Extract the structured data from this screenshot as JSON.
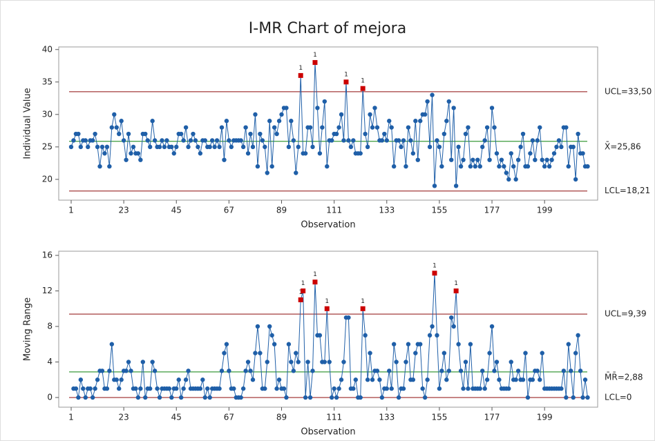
{
  "chart_data": [
    {
      "type": "line",
      "title": "I-MR Chart of mejora",
      "x_label": "Observation",
      "y_label": "Individual Value",
      "x": [
        1,
        2,
        3,
        4,
        5,
        6,
        7,
        8,
        9,
        10,
        11,
        12,
        13,
        14,
        15,
        16,
        17,
        18,
        19,
        20,
        21,
        22,
        23,
        24,
        25,
        26,
        27,
        28,
        29,
        30,
        31,
        32,
        33,
        34,
        35,
        36,
        37,
        38,
        39,
        40,
        41,
        42,
        43,
        44,
        45,
        46,
        47,
        48,
        49,
        50,
        51,
        52,
        53,
        54,
        55,
        56,
        57,
        58,
        59,
        60,
        61,
        62,
        63,
        64,
        65,
        66,
        67,
        68,
        69,
        70,
        71,
        72,
        73,
        74,
        75,
        76,
        77,
        78,
        79,
        80,
        81,
        82,
        83,
        84,
        85,
        86,
        87,
        88,
        89,
        90,
        91,
        92,
        93,
        94,
        95,
        96,
        97,
        98,
        99,
        100,
        101,
        102,
        103,
        104,
        105,
        106,
        107,
        108,
        109,
        110,
        111,
        112,
        113,
        114,
        115,
        116,
        117,
        118,
        119,
        120,
        121,
        122,
        123,
        124,
        125,
        126,
        127,
        128,
        129,
        130,
        131,
        132,
        133,
        134,
        135,
        136,
        137,
        138,
        139,
        140,
        141,
        142,
        143,
        144,
        145,
        146,
        147,
        148,
        149,
        150,
        151,
        152,
        153,
        154,
        155,
        156,
        157,
        158,
        159,
        160,
        161,
        162,
        163,
        164,
        165,
        166,
        167,
        168,
        169,
        170,
        171,
        172,
        173,
        174,
        175,
        176,
        177,
        178,
        179,
        180,
        181,
        182,
        183,
        184,
        185,
        186,
        187,
        188,
        189,
        190,
        191,
        192,
        193,
        194,
        195,
        196,
        197,
        198,
        199,
        200,
        201,
        202,
        203,
        204,
        205,
        206,
        207,
        208,
        209,
        210,
        211,
        212,
        213,
        214,
        215,
        216,
        217
      ],
      "values": [
        25,
        26,
        27,
        27,
        25,
        26,
        26,
        25,
        26,
        26,
        27,
        25,
        22,
        25,
        24,
        25,
        22,
        28,
        30,
        28,
        27,
        29,
        26,
        23,
        27,
        24,
        25,
        24,
        24,
        23,
        27,
        27,
        26,
        25,
        29,
        26,
        25,
        25,
        26,
        25,
        26,
        25,
        25,
        24,
        25,
        27,
        27,
        26,
        28,
        25,
        26,
        27,
        26,
        25,
        24,
        26,
        26,
        25,
        25,
        26,
        25,
        26,
        25,
        28,
        23,
        29,
        26,
        25,
        26,
        26,
        26,
        26,
        25,
        28,
        24,
        27,
        25,
        30,
        22,
        27,
        26,
        25,
        21,
        29,
        22,
        28,
        27,
        29,
        30,
        31,
        31,
        25,
        29,
        26,
        21,
        25,
        36,
        24,
        24,
        28,
        28,
        25,
        38,
        31,
        24,
        28,
        32,
        22,
        26,
        26,
        27,
        27,
        28,
        30,
        26,
        35,
        26,
        25,
        26,
        24,
        24,
        24,
        34,
        27,
        25,
        30,
        28,
        31,
        28,
        26,
        26,
        27,
        26,
        29,
        28,
        22,
        26,
        26,
        25,
        26,
        22,
        28,
        26,
        24,
        29,
        23,
        29,
        30,
        30,
        32,
        25,
        33,
        19,
        26,
        25,
        22,
        27,
        29,
        32,
        23,
        31,
        19,
        25,
        22,
        23,
        27,
        28,
        22,
        23,
        22,
        23,
        22,
        25,
        26,
        28,
        23,
        31,
        28,
        24,
        22,
        23,
        22,
        21,
        20,
        24,
        22,
        20,
        23,
        25,
        27,
        22,
        22,
        24,
        26,
        23,
        26,
        28,
        23,
        22,
        23,
        22,
        23,
        24,
        25,
        26,
        25,
        28,
        28,
        22,
        25,
        25,
        20,
        27,
        24,
        24,
        22,
        22
      ],
      "color": "#1f5fa8",
      "flags": [
        {
          "x": 97,
          "label": "1"
        },
        {
          "x": 103,
          "label": "1"
        },
        {
          "x": 116,
          "label": "1"
        },
        {
          "x": 123,
          "label": "1"
        }
      ],
      "control_lines": [
        {
          "value": 33.5,
          "label": "UCL=33,50",
          "color": "#a33a3a"
        },
        {
          "value": 25.86,
          "label": "X̄=25,86",
          "color": "#3a9a3a"
        },
        {
          "value": 18.21,
          "label": "LCL=18,21",
          "color": "#a33a3a"
        }
      ],
      "xlim": [
        -4.2,
        221.2
      ],
      "xticks": [
        1,
        23,
        45,
        67,
        89,
        111,
        133,
        155,
        177,
        199
      ],
      "ylim": [
        16.8,
        40.4
      ],
      "yticks": [
        20,
        25,
        30,
        35,
        40
      ]
    },
    {
      "type": "line",
      "x_label": "Observation",
      "y_label": "Moving Range",
      "x": [
        1,
        2,
        3,
        4,
        5,
        6,
        7,
        8,
        9,
        10,
        11,
        12,
        13,
        14,
        15,
        16,
        17,
        18,
        19,
        20,
        21,
        22,
        23,
        24,
        25,
        26,
        27,
        28,
        29,
        30,
        31,
        32,
        33,
        34,
        35,
        36,
        37,
        38,
        39,
        40,
        41,
        42,
        43,
        44,
        45,
        46,
        47,
        48,
        49,
        50,
        51,
        52,
        53,
        54,
        55,
        56,
        57,
        58,
        59,
        60,
        61,
        62,
        63,
        64,
        65,
        66,
        67,
        68,
        69,
        70,
        71,
        72,
        73,
        74,
        75,
        76,
        77,
        78,
        79,
        80,
        81,
        82,
        83,
        84,
        85,
        86,
        87,
        88,
        89,
        90,
        91,
        92,
        93,
        94,
        95,
        96,
        97,
        98,
        99,
        100,
        101,
        102,
        103,
        104,
        105,
        106,
        107,
        108,
        109,
        110,
        111,
        112,
        113,
        114,
        115,
        116,
        117,
        118,
        119,
        120,
        121,
        122,
        123,
        124,
        125,
        126,
        127,
        128,
        129,
        130,
        131,
        132,
        133,
        134,
        135,
        136,
        137,
        138,
        139,
        140,
        141,
        142,
        143,
        144,
        145,
        146,
        147,
        148,
        149,
        150,
        151,
        152,
        153,
        154,
        155,
        156,
        157,
        158,
        159,
        160,
        161,
        162,
        163,
        164,
        165,
        166,
        167,
        168,
        169,
        170,
        171,
        172,
        173,
        174,
        175,
        176,
        177,
        178,
        179,
        180,
        181,
        182,
        183,
        184,
        185,
        186,
        187,
        188,
        189,
        190,
        191,
        192,
        193,
        194,
        195,
        196,
        197,
        198,
        199,
        200,
        201,
        202,
        203,
        204,
        205,
        206,
        207,
        208,
        209,
        210,
        211,
        212,
        213,
        214,
        215,
        216,
        217
      ],
      "values": [
        null,
        1,
        1,
        0,
        2,
        1,
        0,
        1,
        1,
        0,
        1,
        2,
        3,
        3,
        1,
        1,
        3,
        6,
        2,
        2,
        1,
        2,
        3,
        3,
        4,
        3,
        1,
        1,
        0,
        1,
        4,
        0,
        1,
        1,
        4,
        3,
        1,
        0,
        1,
        1,
        1,
        1,
        0,
        1,
        1,
        2,
        0,
        1,
        2,
        3,
        1,
        1,
        1,
        1,
        1,
        2,
        0,
        1,
        0,
        1,
        1,
        1,
        1,
        3,
        5,
        6,
        3,
        1,
        1,
        0,
        0,
        0,
        1,
        3,
        4,
        3,
        2,
        5,
        8,
        5,
        1,
        1,
        4,
        8,
        7,
        6,
        1,
        2,
        1,
        1,
        0,
        6,
        4,
        3,
        5,
        4,
        11,
        12,
        0,
        4,
        0,
        3,
        13,
        7,
        7,
        4,
        4,
        10,
        4,
        0,
        1,
        0,
        1,
        2,
        4,
        9,
        9,
        1,
        1,
        2,
        0,
        0,
        10,
        7,
        2,
        5,
        2,
        3,
        3,
        2,
        0,
        1,
        1,
        3,
        1,
        6,
        4,
        0,
        1,
        1,
        4,
        6,
        2,
        2,
        5,
        6,
        6,
        1,
        0,
        2,
        7,
        8,
        14,
        7,
        1,
        3,
        5,
        2,
        3,
        9,
        8,
        12,
        6,
        3,
        1,
        4,
        1,
        6,
        1,
        1,
        1,
        1,
        3,
        1,
        2,
        5,
        8,
        3,
        4,
        2,
        1,
        1,
        1,
        1,
        4,
        2,
        2,
        3,
        2,
        2,
        5,
        0,
        2,
        2,
        3,
        3,
        2,
        5,
        1,
        1,
        1,
        1,
        1,
        1,
        1,
        1,
        3,
        0,
        6,
        3,
        0,
        5,
        7,
        3,
        0,
        2,
        0
      ],
      "color": "#1f5fa8",
      "flags": [
        {
          "x": 97,
          "label": "1"
        },
        {
          "x": 98,
          "label": "1"
        },
        {
          "x": 103,
          "label": "1"
        },
        {
          "x": 108,
          "label": "1"
        },
        {
          "x": 123,
          "label": "1"
        },
        {
          "x": 153,
          "label": "1"
        },
        {
          "x": 162,
          "label": "1"
        }
      ],
      "control_lines": [
        {
          "value": 9.39,
          "label": "UCL=9,39",
          "color": "#a33a3a"
        },
        {
          "value": 2.88,
          "label": "M̄R̄=2,88",
          "color": "#3a9a3a"
        },
        {
          "value": 0,
          "label": "LCL=0",
          "color": "#a33a3a"
        }
      ],
      "xlim": [
        -4.2,
        221.2
      ],
      "xticks": [
        1,
        23,
        45,
        67,
        89,
        111,
        133,
        155,
        177,
        199
      ],
      "ylim": [
        -1.09,
        16.47
      ],
      "yticks": [
        0,
        4,
        8,
        12,
        16
      ]
    }
  ]
}
